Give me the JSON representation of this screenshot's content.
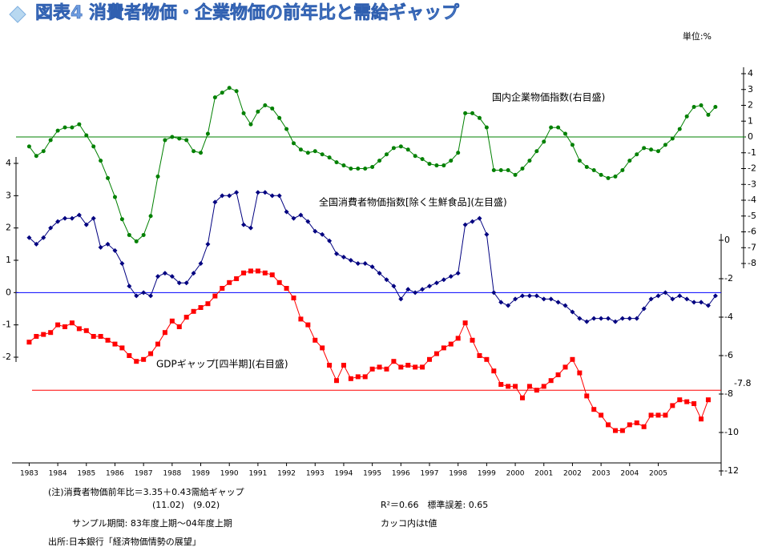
{
  "chart_data": {
    "type": "line",
    "title": "図表4 消費者物価・企業物価の前年比と需給ギャップ",
    "unit_label": "単位:%",
    "x": [
      1983,
      1983.25,
      1983.5,
      1983.75,
      1984,
      1984.25,
      1984.5,
      1984.75,
      1985,
      1985.25,
      1985.5,
      1985.75,
      1986,
      1986.25,
      1986.5,
      1986.75,
      1987,
      1987.25,
      1987.5,
      1987.75,
      1988,
      1988.25,
      1988.5,
      1988.75,
      1989,
      1989.25,
      1989.5,
      1989.75,
      1990,
      1990.25,
      1990.5,
      1990.75,
      1991,
      1991.25,
      1991.5,
      1991.75,
      1992,
      1992.25,
      1992.5,
      1992.75,
      1993,
      1993.25,
      1993.5,
      1993.75,
      1994,
      1994.25,
      1994.5,
      1994.75,
      1995,
      1995.25,
      1995.5,
      1995.75,
      1996,
      1996.25,
      1996.5,
      1996.75,
      1997,
      1997.25,
      1997.5,
      1997.75,
      1998,
      1998.25,
      1998.5,
      1998.75,
      1999,
      1999.25,
      1999.5,
      1999.75,
      2000,
      2000.25,
      2000.5,
      2000.75,
      2001,
      2001.25,
      2001.5,
      2001.75,
      2002,
      2002.25,
      2002.5,
      2002.75,
      2003,
      2003.25,
      2003.5,
      2003.75,
      2004,
      2004.25,
      2004.5,
      2004.75,
      2005,
      2005.25,
      2005.5,
      2005.75,
      2006,
      2006.25,
      2006.5,
      2006.75,
      2007
    ],
    "xlim": [
      1982.4,
      2007.2
    ],
    "xticks": [
      1983,
      1984,
      1985,
      1986,
      1987,
      1988,
      1989,
      1990,
      1991,
      1992,
      1993,
      1994,
      1995,
      1996,
      1997,
      1998,
      1999,
      2000,
      2001,
      2002,
      2003,
      2004,
      2005
    ],
    "ylim": [
      -2,
      4
    ],
    "yticks": [
      4,
      3,
      2,
      1,
      0,
      -1,
      -2
    ],
    "y2lim": [
      -8,
      4
    ],
    "y2ticks": [
      4,
      3,
      2,
      1,
      0,
      -1,
      -2,
      -3,
      -4,
      -5,
      -6,
      -7,
      -8
    ],
    "y3lim": [
      -12,
      0
    ],
    "y3ticks": [
      0,
      -2,
      -4,
      -6,
      -8,
      -10,
      -12
    ],
    "series": [
      {
        "name": "国内企業物価指数(右目盛)",
        "color": "#008000",
        "axis": "y2",
        "marker": "circle",
        "values": [
          -0.6,
          -1.2,
          -0.9,
          -0.2,
          0.4,
          0.6,
          0.6,
          0.8,
          0.1,
          -0.6,
          -1.5,
          -2.6,
          -3.8,
          -5.2,
          -6.2,
          -6.6,
          -6.2,
          -5,
          -2.5,
          -0.2,
          0,
          -0.1,
          -0.2,
          -0.9,
          -1,
          0.2,
          2.5,
          2.8,
          3.1,
          2.9,
          1.5,
          0.8,
          1.6,
          2.0,
          1.8,
          1.2,
          0.5,
          -0.4,
          -0.8,
          -1.0,
          -0.9,
          -1.1,
          -1.3,
          -1.6,
          -1.8,
          -2.0,
          -2.0,
          -2.0,
          -1.9,
          -1.5,
          -1.1,
          -0.7,
          -0.6,
          -0.8,
          -1.2,
          -1.4,
          -1.7,
          -1.8,
          -1.8,
          -1.5,
          -1.0,
          1.5,
          1.5,
          1.2,
          0.6,
          -2.1,
          -2.1,
          -2.1,
          -2.4,
          -2.0,
          -1.5,
          -0.9,
          -0.3,
          0.6,
          0.6,
          0.2,
          -0.5,
          -1.5,
          -1.9,
          -2.1,
          -2.4,
          -2.6,
          -2.5,
          -2.1,
          -1.5,
          -1.1,
          -0.7,
          -0.8,
          -0.9,
          -0.5,
          -0.1,
          0.5,
          1.3,
          1.9,
          2.0,
          1.4,
          1.9
        ]
      },
      {
        "name": "全国消費者物価指数[除く生鮮食品](左目盛)",
        "color": "#000080",
        "axis": "y",
        "marker": "diamond",
        "values": [
          1.7,
          1.5,
          1.7,
          2.0,
          2.2,
          2.3,
          2.3,
          2.4,
          2.1,
          2.3,
          1.4,
          1.5,
          1.3,
          0.9,
          0.2,
          -0.1,
          0,
          -0.1,
          0.5,
          0.6,
          0.5,
          0.3,
          0.3,
          0.6,
          0.9,
          1.5,
          2.8,
          3.0,
          3.0,
          3.1,
          2.1,
          2.0,
          3.1,
          3.1,
          3.0,
          3.0,
          2.5,
          2.3,
          2.4,
          2.2,
          1.9,
          1.8,
          1.6,
          1.2,
          1.1,
          1.0,
          0.9,
          0.9,
          0.8,
          0.6,
          0.4,
          0.2,
          -0.2,
          0.1,
          0,
          0.1,
          0.2,
          0.3,
          0.4,
          0.5,
          0.6,
          2.1,
          2.2,
          2.3,
          1.8,
          0,
          -0.3,
          -0.4,
          -0.2,
          -0.1,
          -0.1,
          -0.1,
          -0.2,
          -0.2,
          -0.3,
          -0.4,
          -0.6,
          -0.8,
          -0.9,
          -0.8,
          -0.8,
          -0.8,
          -0.9,
          -0.8,
          -0.8,
          -0.8,
          -0.5,
          -0.2,
          -0.1,
          0,
          -0.2,
          -0.1,
          -0.2,
          -0.3,
          -0.3,
          -0.4,
          -0.1
        ]
      },
      {
        "name": "GDPギャップ[四半期](右目盛)",
        "color": "#ff0000",
        "axis": "y3",
        "marker": "square",
        "values": [
          -5.3,
          -5.0,
          -4.9,
          -4.8,
          -4.4,
          -4.5,
          -4.3,
          -4.6,
          -4.7,
          -5.0,
          -5.0,
          -5.2,
          -5.4,
          -5.6,
          -6.0,
          -6.3,
          -6.2,
          -5.9,
          -5.4,
          -4.8,
          -4.2,
          -4.5,
          -4.0,
          -3.7,
          -3.5,
          -3.3,
          -2.9,
          -2.5,
          -2.2,
          -2.0,
          -1.7,
          -1.6,
          -1.6,
          -1.7,
          -1.8,
          -2.2,
          -2.5,
          -3.0,
          -4.1,
          -4.4,
          -5.2,
          -5.6,
          -6.5,
          -7.3,
          -6.5,
          -7.2,
          -7.1,
          -7.1,
          -6.7,
          -6.6,
          -6.7,
          -6.3,
          -6.6,
          -6.5,
          -6.6,
          -6.6,
          -6.2,
          -5.9,
          -5.6,
          -5.4,
          -5.1,
          -4.3,
          -5.2,
          -6.0,
          -6.2,
          -6.8,
          -7.5,
          -7.6,
          -7.6,
          -8.2,
          -7.6,
          -7.8,
          -7.6,
          -7.3,
          -7.0,
          -6.6,
          -6.2,
          -6.9,
          -8.1,
          -8.8,
          -9.1,
          -9.6,
          -9.9,
          -9.9,
          -9.6,
          -9.5,
          -9.7,
          -9.1,
          -9.1,
          -9.1,
          -8.6,
          -8.3,
          -8.4,
          -8.5,
          -9.3,
          -8.3,
          null
        ]
      }
    ],
    "reference_lines": [
      {
        "axis": "y2",
        "value": 0,
        "color": "#008000"
      },
      {
        "axis": "y",
        "value": 0,
        "color": "#0000ff"
      },
      {
        "axis": "y3",
        "value": -7.8,
        "color": "#ff0000"
      }
    ],
    "notes": [
      "(注)消費者物価前年比＝3.35＋0.43需給ギャップ",
      "(11.02)　(9.02)",
      "R²＝0.66　標準誤差: 0.65",
      "サンプル期間: 83年度上期〜04年度上期",
      "カッコ内はt値",
      "出所:日本銀行「経済物価情勢の展望」"
    ]
  }
}
